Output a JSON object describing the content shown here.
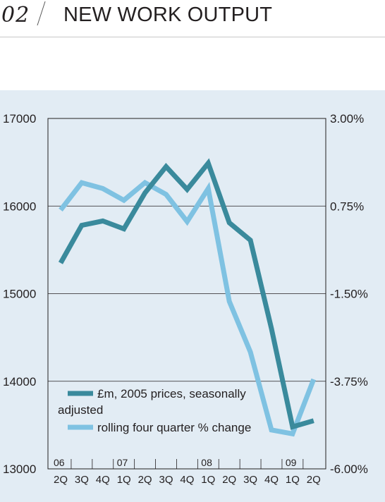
{
  "header": {
    "section_number": "02",
    "title": "NEW WORK OUTPUT"
  },
  "chart_data": {
    "type": "line",
    "categories": [
      "2Q",
      "3Q",
      "4Q",
      "1Q",
      "2Q",
      "3Q",
      "4Q",
      "1Q",
      "2Q",
      "3Q",
      "4Q",
      "1Q",
      "2Q"
    ],
    "year_labels": [
      {
        "label": "06",
        "index": 0
      },
      {
        "label": "07",
        "index": 3
      },
      {
        "label": "08",
        "index": 7
      },
      {
        "label": "09",
        "index": 11
      }
    ],
    "left_axis": {
      "ylim": [
        13000,
        17000
      ],
      "ticks": [
        "13000",
        "14000",
        "15000",
        "16000",
        "17000"
      ]
    },
    "right_axis": {
      "ylim": [
        -6.0,
        3.0
      ],
      "ticks": [
        "-6.00%",
        "-3.75%",
        "-1.50%",
        "0.75%",
        "3.00%"
      ]
    },
    "grid": "horizontal",
    "legend_position": "bottom-left",
    "series": [
      {
        "name": "£m, 2005 prices, seasonally adjusted",
        "axis": "left",
        "color": "#3a8a9c",
        "values": [
          15350,
          15780,
          15830,
          15740,
          16150,
          16450,
          16190,
          16490,
          15810,
          15610,
          14600,
          13480,
          13550
        ]
      },
      {
        "name": "rolling four quarter % change",
        "axis": "right",
        "color": "#7fc2e2",
        "values": [
          0.65,
          1.35,
          1.2,
          0.9,
          1.35,
          1.05,
          0.35,
          1.2,
          -1.7,
          -3.0,
          -5.0,
          -5.1,
          -3.7
        ]
      }
    ]
  }
}
